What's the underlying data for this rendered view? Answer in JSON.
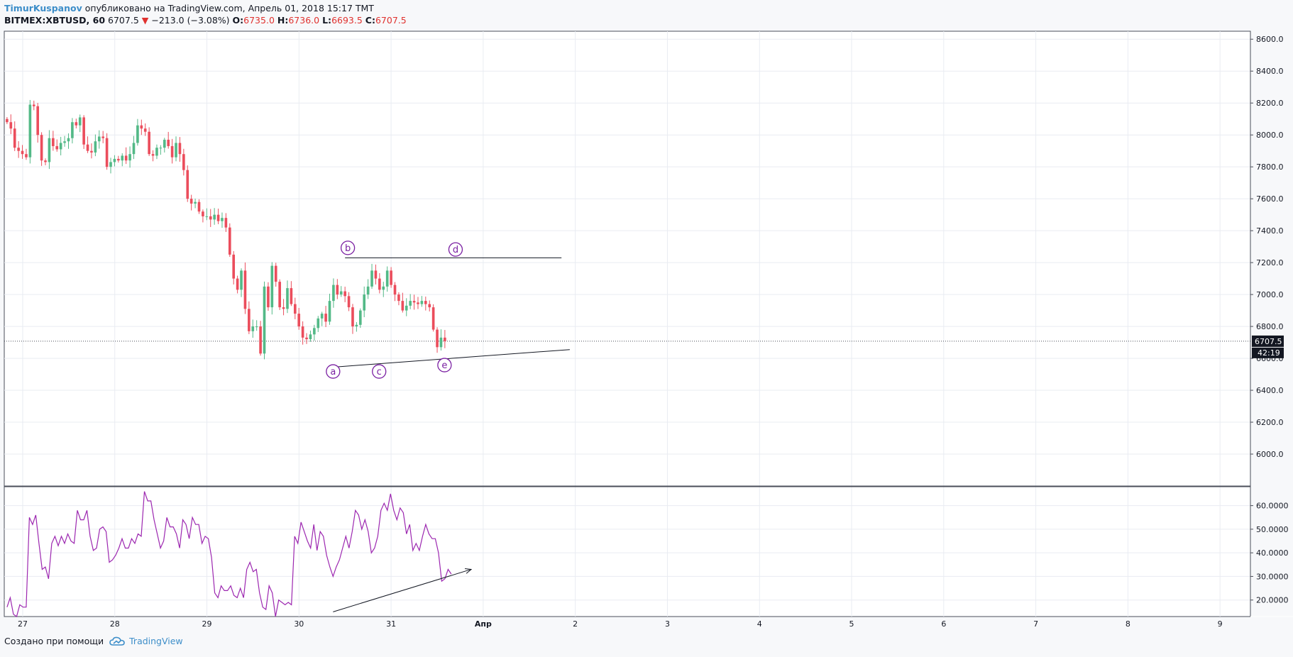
{
  "header": {
    "author": "TimurKuspanov",
    "published": "опубликовано на TradingView.com, Апрель 01, 2018 15:17 TMT",
    "symbol": "BITMEX:XBTUSD, 60",
    "last": "6707.5",
    "change": "−213.0 (−3.08%)",
    "open_label": "O:",
    "open": "6735.0",
    "high_label": "H:",
    "high": "6736.0",
    "low_label": "L:",
    "low": "6693.5",
    "close_label": "C:",
    "close": "6707.5"
  },
  "footer": {
    "created_with": "Создано при помощи",
    "brand": "TradingView"
  },
  "colors": {
    "up": "#53b987",
    "down": "#eb4d5c",
    "osc": "#9c27b0",
    "grid": "#e9ecf2",
    "label": "#7a1fa2",
    "text": "#131722"
  },
  "chart_data": [
    {
      "type": "candlestick",
      "pane": "price",
      "ylim": [
        5800,
        8650
      ],
      "y_ticks": [
        6000,
        6200,
        6400,
        6600,
        6800,
        7000,
        7200,
        7400,
        7600,
        7800,
        8000,
        8200,
        8400,
        8600
      ],
      "y_tick_labels": [
        "6000.0",
        "6200.0",
        "6400.0",
        "6600.0",
        "6800.0",
        "7000.0",
        "7200.0",
        "7400.0",
        "7600.0",
        "7800.0",
        "8000.0",
        "8200.0",
        "8400.0",
        "8600.0"
      ],
      "x_ticks": [
        27,
        28,
        29,
        30,
        31,
        32,
        33,
        34,
        35,
        36,
        37,
        38,
        39,
        40
      ],
      "x_tick_labels": [
        "27",
        "28",
        "29",
        "30",
        "31",
        "Апр",
        "2",
        "3",
        "4",
        "5",
        "6",
        "7",
        "8",
        "9"
      ],
      "xlim": [
        26.8,
        40.33
      ],
      "last_price": 6707.5,
      "last_price_label": "6707.5",
      "countdown_label": "42:19",
      "candle_width_days": 0.028,
      "candles_x_start": 26.83,
      "candles_x_step": 0.0417,
      "closes": [
        8080,
        8040,
        7920,
        7900,
        7880,
        7860,
        8190,
        8180,
        8000,
        7840,
        7830,
        7980,
        7930,
        7910,
        7950,
        7960,
        7980,
        8080,
        8060,
        8110,
        7940,
        7900,
        7890,
        7960,
        7990,
        7980,
        7800,
        7830,
        7850,
        7840,
        7870,
        7840,
        7880,
        7950,
        8060,
        8040,
        8020,
        7880,
        7870,
        7920,
        7920,
        7970,
        7930,
        7860,
        7950,
        7880,
        7780,
        7600,
        7570,
        7580,
        7520,
        7490,
        7490,
        7470,
        7500,
        7460,
        7480,
        7420,
        7250,
        7100,
        7030,
        7150,
        6910,
        6770,
        6800,
        6800,
        6630,
        7050,
        6920,
        7180,
        7080,
        6920,
        6910,
        7040,
        6940,
        6880,
        6800,
        6730,
        6720,
        6750,
        6790,
        6850,
        6880,
        6830,
        6960,
        7060,
        7000,
        7020,
        6990,
        6920,
        6800,
        6810,
        6900,
        7000,
        7050,
        7150,
        7100,
        7030,
        7050,
        7150,
        7060,
        7000,
        6960,
        6900,
        6930,
        6960,
        6950,
        6940,
        6960,
        6940,
        6920,
        6780,
        6670,
        6730,
        6707.5
      ],
      "annotations": [
        {
          "label": "a",
          "x": 30.37,
          "y": 6580
        },
        {
          "label": "b",
          "x": 30.53,
          "y": 7230
        },
        {
          "label": "c",
          "x": 30.87,
          "y": 6580
        },
        {
          "label": "d",
          "x": 31.7,
          "y": 7220
        },
        {
          "label": "e",
          "x": 31.58,
          "y": 6620
        }
      ],
      "trendlines": [
        {
          "x1": 30.5,
          "y1": 7230,
          "x2": 32.85,
          "y2": 7230
        },
        {
          "x1": 30.37,
          "y1": 6545,
          "x2": 32.94,
          "y2": 6655
        }
      ]
    },
    {
      "type": "line",
      "pane": "oscillator",
      "series": [
        {
          "values": [
            17,
            21,
            14,
            13,
            18,
            17,
            17,
            55,
            52,
            56,
            44,
            33,
            34,
            29,
            44,
            47,
            43,
            47,
            44,
            48,
            45,
            44,
            58,
            54,
            54,
            58,
            47,
            41,
            42,
            50,
            51,
            49,
            36,
            37,
            39,
            42,
            46,
            42,
            42,
            46,
            44,
            48,
            47,
            66,
            62,
            62,
            54,
            48,
            42,
            45,
            55,
            51,
            51,
            48,
            42,
            54,
            52,
            46,
            55,
            52,
            52,
            44,
            47,
            46,
            38,
            23,
            21,
            26,
            24,
            24,
            26,
            22,
            21,
            25,
            21,
            33,
            36,
            32,
            33,
            23,
            17,
            16,
            26,
            23,
            13,
            20,
            19,
            18,
            19,
            18,
            47,
            44,
            53,
            49,
            45,
            42,
            52,
            41,
            49,
            47,
            39,
            34,
            30,
            34,
            37,
            42,
            47,
            42,
            49,
            58,
            56,
            50,
            54,
            49,
            40,
            42,
            47,
            58,
            61,
            58,
            65,
            58,
            54,
            59,
            57,
            48,
            52,
            41,
            44,
            41,
            47,
            52,
            48,
            46,
            46,
            40,
            28,
            29,
            33,
            31
          ]
        }
      ],
      "ylim": [
        13,
        68
      ],
      "y_ticks": [
        20,
        30,
        40,
        50,
        60
      ],
      "y_tick_labels": [
        "20.0000",
        "30.0000",
        "40.0000",
        "50.0000",
        "60.0000"
      ],
      "x_start": 26.83,
      "x_step": 0.0347,
      "arrow": {
        "x1": 30.37,
        "y1": 15,
        "x2": 31.87,
        "y2": 33
      }
    }
  ]
}
